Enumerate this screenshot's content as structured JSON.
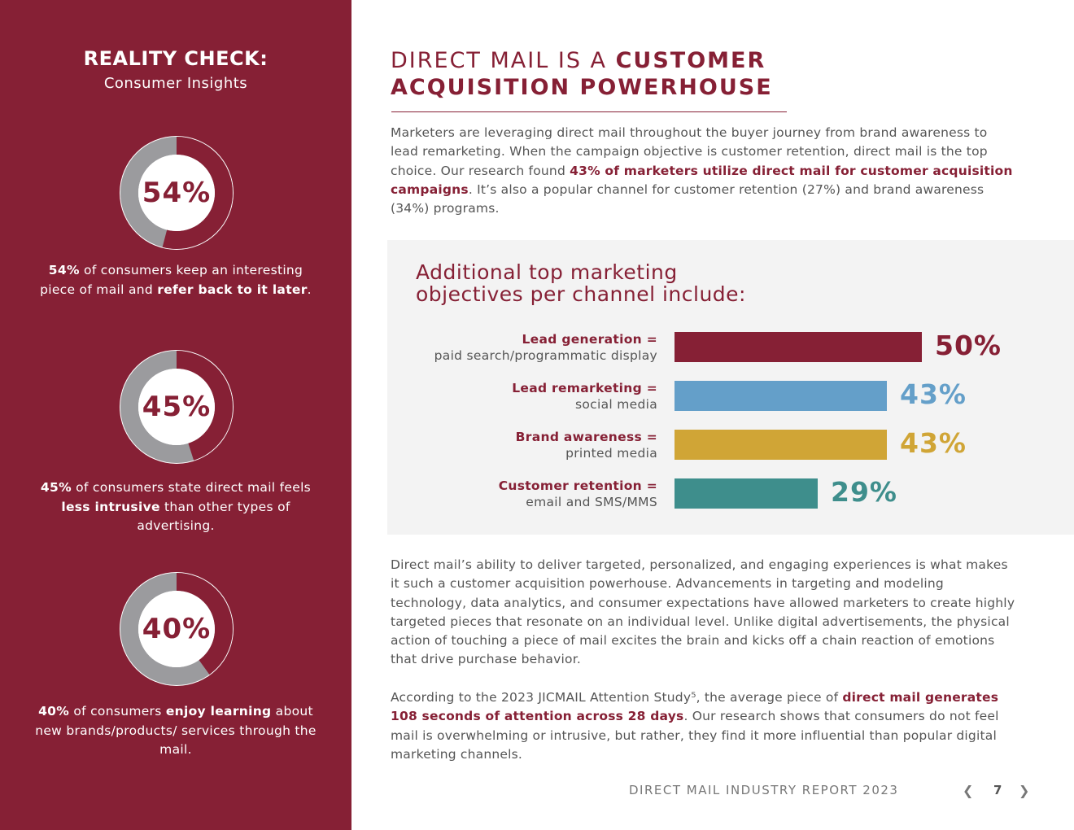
{
  "sidebar": {
    "title": "REALITY CHECK:",
    "subtitle": "Consumer Insights",
    "stats": [
      {
        "percent": "54%",
        "value": 0.54,
        "parts": [
          {
            "text": "54%",
            "bold": true
          },
          {
            "text": " of consumers keep an interesting piece of mail and ",
            "bold": false
          },
          {
            "text": "refer back to it later",
            "bold": true
          },
          {
            "text": ".",
            "bold": false
          }
        ]
      },
      {
        "percent": "45%",
        "value": 0.45,
        "parts": [
          {
            "text": "45%",
            "bold": true
          },
          {
            "text": " of consumers state direct mail feels ",
            "bold": false
          },
          {
            "text": "less intrusive",
            "bold": true
          },
          {
            "text": " than other types of advertising.",
            "bold": false
          }
        ]
      },
      {
        "percent": "40%",
        "value": 0.4,
        "parts": [
          {
            "text": "40%",
            "bold": true
          },
          {
            "text": " of consumers ",
            "bold": false
          },
          {
            "text": "enjoy learning",
            "bold": true
          },
          {
            "text": " about new brands/products/ services through the mail.",
            "bold": false
          }
        ]
      }
    ],
    "colors": {
      "background": "#862035",
      "donut_fill": "#862035",
      "donut_rest": "#9b9b9e"
    }
  },
  "main": {
    "title_line1_light": "DIRECT MAIL IS A ",
    "title_line1_bold": "CUSTOMER",
    "title_line2_bold": "ACQUISITION POWERHOUSE",
    "intro_parts": [
      {
        "text": "Marketers are leveraging direct mail throughout the buyer journey from brand awareness to lead remarketing. When the campaign objective is customer retention, direct mail is the top choice. Our research found ",
        "hl": false
      },
      {
        "text": "43% of marketers utilize direct mail for customer acquisition campaigns",
        "hl": true
      },
      {
        "text": ". It’s also a popular channel for customer retention (27%) and brand awareness (34%) programs.",
        "hl": false
      }
    ],
    "body1": "Direct mail’s ability to deliver targeted, personalized, and engaging experiences is what makes it such a customer acquisition powerhouse. Advancements in targeting and modeling technology, data analytics, and consumer expectations have allowed marketers to create highly targeted pieces that resonate on an individual level. Unlike digital advertisements, the physical action of touching a piece of mail excites the brain and kicks off a chain reaction of emotions that drive purchase behavior.",
    "body2_parts": [
      {
        "text": "According to the 2023 JICMAIL Attention Study⁵, the average piece of ",
        "hl": false
      },
      {
        "text": "direct mail generates 108 seconds of attention across 28 days",
        "hl": true
      },
      {
        "text": ". Our research shows that consumers do not feel mail is overwhelming or intrusive, but rather, they find it more influential than popular digital marketing channels.",
        "hl": false
      }
    ]
  },
  "panel": {
    "title_line1": "Additional top marketing",
    "title_line2": "objectives per channel include:"
  },
  "chart_data": {
    "type": "bar",
    "orientation": "horizontal",
    "categories": [
      "Lead generation = paid search/programmatic display",
      "Lead remarketing = social media",
      "Brand awareness = printed media",
      "Customer retention = email and SMS/MMS"
    ],
    "values": [
      50,
      43,
      43,
      29
    ],
    "xlim": [
      0,
      57
    ],
    "grid": false,
    "rows": [
      {
        "label_bold": "Lead generation =",
        "label_light": "paid search/programmatic display",
        "value": 50,
        "value_label": "50%",
        "color": "#862035"
      },
      {
        "label_bold": "Lead remarketing =",
        "label_light": "social media",
        "value": 43,
        "value_label": "43%",
        "color": "#649fc9"
      },
      {
        "label_bold": "Brand awareness =",
        "label_light": "printed media",
        "value": 43,
        "value_label": "43%",
        "color": "#d0a536"
      },
      {
        "label_bold": "Customer retention =",
        "label_light": "email and SMS/MMS",
        "value": 29,
        "value_label": "29%",
        "color": "#3e8e8c"
      }
    ]
  },
  "footer": {
    "report_title": "DIRECT MAIL INDUSTRY REPORT 2023",
    "page_number": "7",
    "prev_icon": "chevron-left-icon",
    "next_icon": "chevron-right-icon",
    "prev_glyph": "❮",
    "next_glyph": "❯"
  }
}
